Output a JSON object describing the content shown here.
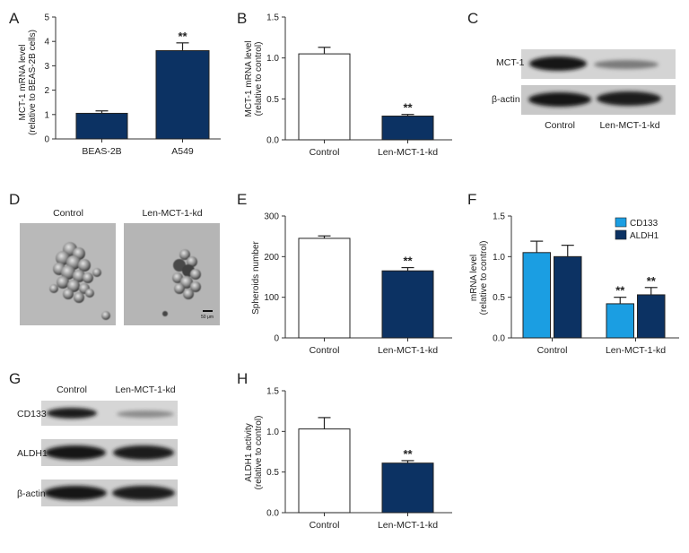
{
  "colors": {
    "navy": "#0c3263",
    "white": "#ffffff",
    "light_blue": "#1b9ee2",
    "axis": "#333333"
  },
  "panels": {
    "A": {
      "letter": "A",
      "ylabel_line1": "MCT-1 mRNA level",
      "ylabel_line2": "(relative to BEAS-2B cells)"
    },
    "B": {
      "letter": "B",
      "ylabel_line1": "MCT-1 mRNA level",
      "ylabel_line2": "(relative to control)"
    },
    "C": {
      "letter": "C",
      "rows": [
        "MCT-1",
        "β-actin"
      ],
      "lanes": [
        "Control",
        "Len-MCT-1-kd"
      ]
    },
    "D": {
      "letter": "D",
      "images": [
        "Control",
        "Len-MCT-1-kd"
      ],
      "scale_label": "50 μm"
    },
    "E": {
      "letter": "E",
      "ylabel_line1": "Spheroids number",
      "ylabel_line2": ""
    },
    "F": {
      "letter": "F",
      "ylabel_line1": "mRNA level",
      "ylabel_line2": "(relative to control)"
    },
    "G": {
      "letter": "G",
      "rows": [
        "CD133",
        "ALDH1",
        "β-actin"
      ],
      "lanes": [
        "Control",
        "Len-MCT-1-kd"
      ]
    },
    "H": {
      "letter": "H",
      "ylabel_line1": "ALDH1 activity",
      "ylabel_line2": "(relative to control)"
    }
  },
  "chart_data": [
    {
      "panel": "A",
      "type": "bar",
      "categories": [
        "BEAS-2B",
        "A549"
      ],
      "values": [
        1.05,
        3.62
      ],
      "errors": [
        0.1,
        0.32
      ],
      "significance": [
        "",
        "**"
      ],
      "ylim": [
        0,
        5
      ],
      "yticks": [
        "0",
        "1",
        "2",
        "3",
        "4",
        "5"
      ],
      "bar_colors": [
        "navy",
        "navy"
      ]
    },
    {
      "panel": "B",
      "type": "bar",
      "categories": [
        "Control",
        "Len-MCT-1-kd"
      ],
      "values": [
        1.05,
        0.29
      ],
      "errors": [
        0.08,
        0.02
      ],
      "significance": [
        "",
        "**"
      ],
      "ylim": [
        0,
        1.5
      ],
      "yticks": [
        "0.0",
        "0.5",
        "1.0",
        "1.5"
      ],
      "bar_colors": [
        "white",
        "navy"
      ]
    },
    {
      "panel": "E",
      "type": "bar",
      "categories": [
        "Control",
        "Len-MCT-1-kd"
      ],
      "values": [
        245,
        165
      ],
      "errors": [
        6,
        8
      ],
      "significance": [
        "",
        "**"
      ],
      "ylim": [
        0,
        300
      ],
      "yticks": [
        "0",
        "100",
        "200",
        "300"
      ],
      "bar_colors": [
        "white",
        "navy"
      ]
    },
    {
      "panel": "F",
      "type": "bar",
      "categories": [
        "Control",
        "Len-MCT-1-kd"
      ],
      "series": [
        {
          "name": "CD133",
          "values": [
            1.05,
            0.42
          ],
          "errors": [
            0.14,
            0.08
          ],
          "significance": [
            "",
            "**"
          ],
          "color": "light_blue"
        },
        {
          "name": "ALDH1",
          "values": [
            1.0,
            0.53
          ],
          "errors": [
            0.14,
            0.09
          ],
          "significance": [
            "",
            "**"
          ],
          "color": "navy"
        }
      ],
      "ylim": [
        0,
        1.5
      ],
      "yticks": [
        "0.0",
        "0.5",
        "1.0",
        "1.5"
      ],
      "legend": "top-right"
    },
    {
      "panel": "H",
      "type": "bar",
      "categories": [
        "Control",
        "Len-MCT-1-kd"
      ],
      "values": [
        1.03,
        0.61
      ],
      "errors": [
        0.14,
        0.03
      ],
      "significance": [
        "",
        "**"
      ],
      "ylim": [
        0,
        1.5
      ],
      "yticks": [
        "0.0",
        "0.5",
        "1.0",
        "1.5"
      ],
      "bar_colors": [
        "white",
        "navy"
      ]
    }
  ]
}
